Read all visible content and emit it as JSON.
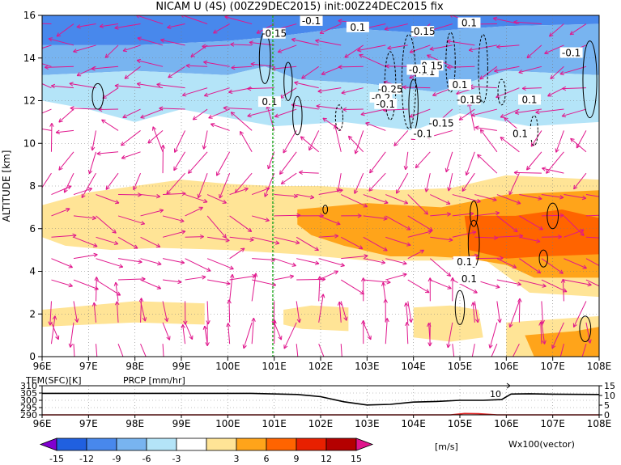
{
  "title": "NICAM U (4S) (00Z29DEC2015) init:00Z24DEC2015 fix",
  "colors": {
    "background": "#ffffff",
    "vector": "#e0168c",
    "contour": "#000000",
    "marker_line": "#22aa22",
    "prcp": "#e02020",
    "levels": [
      "#8000d0",
      "#2060e0",
      "#4888ec",
      "#78b4f0",
      "#b4e4f8",
      "#ffffff",
      "#ffe496",
      "#ffa41a",
      "#ff6400",
      "#e82000",
      "#b40000",
      "#e0148c"
    ]
  },
  "chart_data": [
    {
      "type": "heatmap",
      "title": "NICAM U (4S) (00Z29DEC2015) init:00Z24DEC2015 fix",
      "xlabel": "",
      "ylabel": "ALTITUDE [km]",
      "x_ticks": [
        "96E",
        "97E",
        "98E",
        "99E",
        "100E",
        "101E",
        "102E",
        "103E",
        "104E",
        "105E",
        "106E",
        "107E",
        "108E"
      ],
      "y_ticks": [
        "0",
        "2",
        "4",
        "6",
        "8",
        "10",
        "12",
        "14",
        "16"
      ],
      "xlim": [
        96,
        108
      ],
      "ylim": [
        0,
        16
      ],
      "grid": true,
      "colorbar": {
        "levels": [
          "-15",
          "-12",
          "-9",
          "-6",
          "-3",
          "3",
          "6",
          "9",
          "12",
          "15"
        ],
        "unit": "[m/s]"
      },
      "vector_label": "Wx100(vector)",
      "marker_longitude": 100.97,
      "contour_labels": [
        "-0.1",
        "-0.15",
        "0.1",
        "-0.15",
        "0.1",
        "-0.1",
        "0.1",
        "0.15",
        "-0.1",
        "-0.25",
        "0.1",
        "-0.15",
        "0.1",
        "-0.2",
        "-0.1",
        "0.1",
        "-0.15",
        "-0.1",
        "0.1",
        "0.1",
        "0.1"
      ],
      "regions": [
        {
          "level": -9,
          "polygon": [
            [
              96,
              16
            ],
            [
              108,
              16
            ],
            [
              108,
              15.6
            ],
            [
              106,
              15.5
            ],
            [
              104,
              15.2
            ],
            [
              102.5,
              15.4
            ],
            [
              101,
              15.0
            ],
            [
              100,
              14.8
            ],
            [
              98,
              14.6
            ],
            [
              96,
              14.6
            ]
          ]
        },
        {
          "level": -6,
          "polygon": [
            [
              96,
              14.6
            ],
            [
              98,
              14.6
            ],
            [
              100,
              14.8
            ],
            [
              101,
              15.0
            ],
            [
              102.5,
              15.4
            ],
            [
              104,
              15.2
            ],
            [
              106,
              15.5
            ],
            [
              108,
              15.6
            ],
            [
              108,
              13.2
            ],
            [
              106,
              13.4
            ],
            [
              104.5,
              12.4
            ],
            [
              103,
              12.8
            ],
            [
              101.5,
              13.0
            ],
            [
              100.8,
              13.6
            ],
            [
              100,
              13.2
            ],
            [
              98,
              13.4
            ],
            [
              96,
              13.2
            ]
          ]
        },
        {
          "level": -3,
          "polygon": [
            [
              96,
              13.2
            ],
            [
              98,
              13.4
            ],
            [
              100,
              13.2
            ],
            [
              100.8,
              13.6
            ],
            [
              101.5,
              13.0
            ],
            [
              103,
              12.8
            ],
            [
              104.5,
              12.4
            ],
            [
              106,
              13.4
            ],
            [
              108,
              13.2
            ],
            [
              108,
              11.0
            ],
            [
              106.5,
              10.8
            ],
            [
              105,
              11.4
            ],
            [
              104,
              10.6
            ],
            [
              102.5,
              11.0
            ],
            [
              101,
              10.8
            ],
            [
              100,
              11.2
            ],
            [
              99,
              11.6
            ],
            [
              98,
              11.0
            ],
            [
              97,
              11.6
            ],
            [
              96,
              12.0
            ]
          ]
        },
        {
          "level": 3,
          "polygon": [
            [
              96,
              7.1
            ],
            [
              97,
              7.7
            ],
            [
              98,
              8.0
            ],
            [
              99,
              8.3
            ],
            [
              100,
              8.1
            ],
            [
              101,
              8.0
            ],
            [
              102,
              8.0
            ],
            [
              103.5,
              7.8
            ],
            [
              104.8,
              7.9
            ],
            [
              106,
              8.5
            ],
            [
              108,
              8.3
            ],
            [
              108,
              2.8
            ],
            [
              106.5,
              3.0
            ],
            [
              105.5,
              4.6
            ],
            [
              104.5,
              4.5
            ],
            [
              103,
              4.5
            ],
            [
              101.5,
              4.8
            ],
            [
              100,
              5.0
            ],
            [
              98.5,
              5.1
            ],
            [
              97.5,
              5.0
            ],
            [
              96.5,
              5.2
            ],
            [
              96,
              5.6
            ]
          ]
        },
        {
          "level": 3,
          "polygon": [
            [
              96,
              2.2
            ],
            [
              97,
              2.4
            ],
            [
              98,
              2.6
            ],
            [
              99.5,
              2.5
            ],
            [
              99.5,
              1.5
            ],
            [
              98,
              1.6
            ],
            [
              97,
              1.5
            ],
            [
              96,
              1.4
            ]
          ]
        },
        {
          "level": 3,
          "polygon": [
            [
              101.2,
              2.2
            ],
            [
              101.8,
              2.4
            ],
            [
              102.6,
              2.3
            ],
            [
              102.6,
              1.2
            ],
            [
              101.6,
              1.3
            ],
            [
              101.2,
              1.5
            ]
          ]
        },
        {
          "level": 3,
          "polygon": [
            [
              104,
              2.3
            ],
            [
              104.8,
              2.4
            ],
            [
              105.4,
              2.2
            ],
            [
              105.5,
              0.9
            ],
            [
              104.8,
              0.7
            ],
            [
              104,
              0.9
            ]
          ]
        },
        {
          "level": 3,
          "polygon": [
            [
              106,
              1.6
            ],
            [
              108,
              1.9
            ],
            [
              108,
              0
            ],
            [
              106,
              0
            ]
          ]
        },
        {
          "level": 6,
          "polygon": [
            [
              101.5,
              6.9
            ],
            [
              103,
              7.2
            ],
            [
              104.6,
              7.0
            ],
            [
              106,
              7.6
            ],
            [
              108,
              7.8
            ],
            [
              108,
              3.7
            ],
            [
              106.6,
              3.7
            ],
            [
              106,
              4.3
            ],
            [
              105.2,
              4.6
            ],
            [
              104.4,
              4.7
            ],
            [
              103.5,
              4.7
            ],
            [
              102.5,
              5.2
            ],
            [
              101.8,
              5.7
            ],
            [
              101.5,
              6.2
            ]
          ]
        },
        {
          "level": 6,
          "polygon": [
            [
              106.4,
              1.0
            ],
            [
              107.5,
              1.2
            ],
            [
              108,
              1.4
            ],
            [
              108,
              0
            ],
            [
              106.6,
              0
            ]
          ]
        },
        {
          "level": 9,
          "polygon": [
            [
              105.1,
              6.6
            ],
            [
              106.2,
              6.6
            ],
            [
              107.2,
              6.9
            ],
            [
              108,
              6.5
            ],
            [
              108,
              4.8
            ],
            [
              106.8,
              4.7
            ],
            [
              106,
              4.6
            ],
            [
              105.2,
              5.0
            ]
          ]
        }
      ]
    },
    {
      "type": "line",
      "title": "",
      "xlabel": "",
      "ylabel": "TEM(SFC)[K]",
      "ylabel2": "PRCP [mm/hr]",
      "x_ticks": [
        "96E",
        "97E",
        "98E",
        "99E",
        "100E",
        "101E",
        "102E",
        "103E",
        "104E",
        "105E",
        "106E",
        "107E",
        "108E"
      ],
      "y_ticks_left": [
        "290",
        "295",
        "300",
        "305",
        "310"
      ],
      "y_ticks_right": [
        "0",
        "5",
        "10",
        "15"
      ],
      "xlim": [
        96,
        108
      ],
      "ylim": [
        290,
        310
      ],
      "ylim2": [
        0,
        15
      ],
      "annotation": "10",
      "series": [
        {
          "name": "TEM(SFC)[K]",
          "axis": "left",
          "x": [
            96,
            100.5,
            101.5,
            102,
            102.5,
            103,
            103.5,
            104,
            104.5,
            105,
            105.5,
            105.9,
            106.1,
            106.5,
            107,
            108
          ],
          "values": [
            304.8,
            304.8,
            304.0,
            302.5,
            299.0,
            296.8,
            297.2,
            298.8,
            299.2,
            300.0,
            300.0,
            300.5,
            304.3,
            304.5,
            304.2,
            304.0
          ]
        },
        {
          "name": "PRCP [mm/hr]",
          "axis": "right",
          "x": [
            96,
            104.8,
            105.1,
            105.4,
            105.8,
            108
          ],
          "values": [
            0,
            0,
            0.7,
            0.6,
            0,
            0
          ]
        }
      ]
    }
  ]
}
